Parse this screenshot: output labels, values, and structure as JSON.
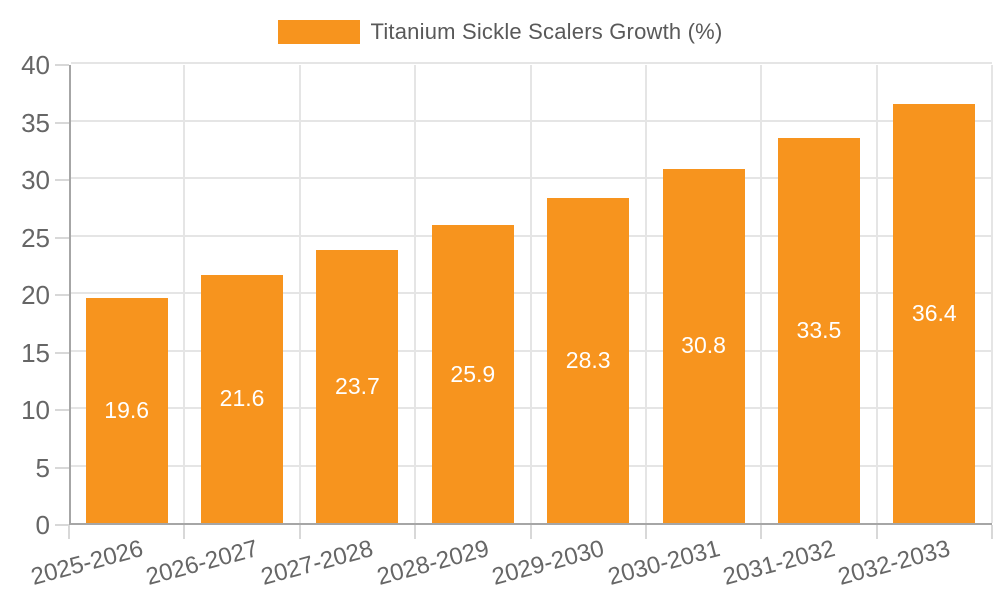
{
  "legend": {
    "label": "Titanium Sickle Scalers Growth (%)"
  },
  "chart_data": {
    "type": "bar",
    "title": "Titanium Sickle Scalers Growth (%)",
    "categories": [
      "2025-2026",
      "2026-2027",
      "2027-2028",
      "2028-2029",
      "2029-2030",
      "2030-2031",
      "2031-2032",
      "2032-2033"
    ],
    "values": [
      19.6,
      21.6,
      23.7,
      25.9,
      28.3,
      30.8,
      33.5,
      36.4
    ],
    "series": [
      {
        "name": "Titanium Sickle Scalers Growth (%)",
        "values": [
          19.6,
          21.6,
          23.7,
          25.9,
          28.3,
          30.8,
          33.5,
          36.4
        ]
      }
    ],
    "xlabel": "",
    "ylabel": "",
    "ylim": [
      0,
      40
    ],
    "yticks": [
      0,
      5,
      10,
      15,
      20,
      25,
      30,
      35,
      40
    ],
    "grid": true,
    "legend_position": "top-center",
    "x_tick_rotation_deg": -15,
    "value_label_position": "center",
    "value_label_decimals": 1
  },
  "colors": {
    "bar": "#f7941e",
    "value_label": "#ffffff",
    "tick_label": "#666666",
    "grid": "#e5e5e5",
    "axis": "#a6a6a6",
    "background": "#ffffff"
  }
}
